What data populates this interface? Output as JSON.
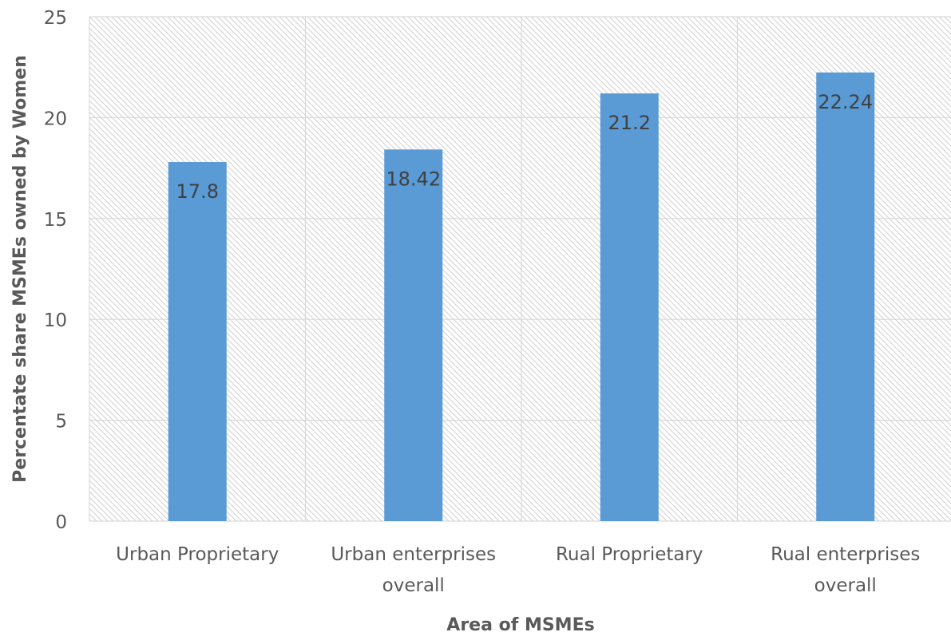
{
  "chart_data": {
    "type": "bar",
    "categories": [
      [
        "Urban Proprietary"
      ],
      [
        "Urban enterprises",
        "overall"
      ],
      [
        "Rual Proprietary"
      ],
      [
        "Rual enterprises",
        "overall"
      ]
    ],
    "values": [
      17.8,
      18.42,
      21.2,
      22.24
    ],
    "data_labels": [
      "17.8",
      "18.42",
      "21.2",
      "22.24"
    ],
    "xlabel": "Area of MSMEs",
    "ylabel": "Percentate share MSMEs owned by Women",
    "ylim": [
      0,
      25
    ],
    "yticks": [
      0,
      5,
      10,
      15,
      20,
      25
    ],
    "grid": true,
    "legend": "none",
    "colors": {
      "bar": "#5b9bd5",
      "grid": "#d9d9d9",
      "hatch": "#d0d0d0",
      "text": "#595959",
      "data_label": "#404040"
    }
  }
}
